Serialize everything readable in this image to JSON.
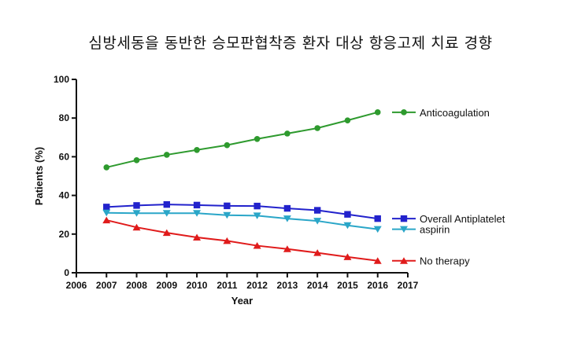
{
  "chart_data": {
    "type": "line",
    "title": "심방세동을 동반한 승모판협착증 환자 대상 항응고제 치료 경향",
    "xlabel": "Year",
    "ylabel": "Patients (%)",
    "xlim": [
      2006,
      2017
    ],
    "ylim": [
      0,
      100
    ],
    "xticks": [
      2006,
      2007,
      2008,
      2009,
      2010,
      2011,
      2012,
      2013,
      2014,
      2015,
      2016,
      2017
    ],
    "yticks": [
      0,
      20,
      40,
      60,
      80,
      100
    ],
    "grid": false,
    "legend_placement": "right",
    "x": [
      2007,
      2008,
      2009,
      2010,
      2011,
      2012,
      2013,
      2014,
      2015,
      2016
    ],
    "series": [
      {
        "name": "Anticoagulation",
        "color": "#2e9a2e",
        "marker": "circle",
        "values": [
          54.5,
          58.2,
          61.0,
          63.5,
          66.0,
          69.2,
          72.0,
          74.8,
          78.8,
          83.0
        ]
      },
      {
        "name": "Overall Antiplatelet",
        "color": "#2222cc",
        "marker": "square",
        "values": [
          34.0,
          34.8,
          35.3,
          35.0,
          34.6,
          34.5,
          33.3,
          32.3,
          30.2,
          28.0
        ]
      },
      {
        "name": "aspirin",
        "color": "#2aa6c8",
        "marker": "triangle-down",
        "values": [
          31.0,
          30.8,
          30.8,
          30.8,
          29.8,
          29.5,
          28.0,
          26.8,
          24.5,
          22.5
        ]
      },
      {
        "name": "No therapy",
        "color": "#e01b1b",
        "marker": "triangle-up",
        "values": [
          27.2,
          23.5,
          20.7,
          18.3,
          16.5,
          14.0,
          12.3,
          10.3,
          8.2,
          6.2
        ]
      }
    ]
  }
}
